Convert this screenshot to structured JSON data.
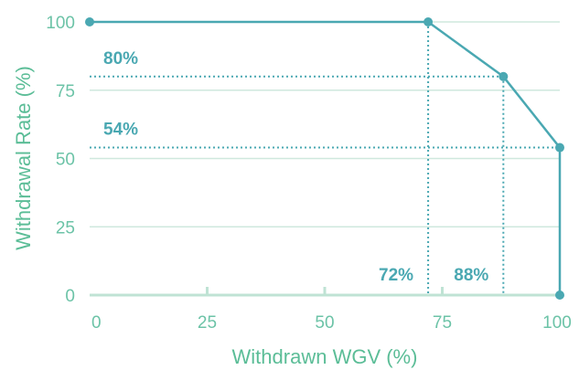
{
  "chart_data": {
    "type": "line",
    "xlabel": "Withdrawn WGV (%)",
    "ylabel": "Withdrawal Rate (%)",
    "xlim": [
      0,
      100
    ],
    "ylim": [
      0,
      100
    ],
    "x_ticks": [
      "0",
      "25",
      "50",
      "75",
      "100"
    ],
    "y_ticks": [
      "0",
      "25",
      "50",
      "75",
      "100"
    ],
    "grid": "horizontal",
    "series": [
      {
        "points": [
          {
            "x": 0,
            "y": 100
          },
          {
            "x": 72,
            "y": 100
          },
          {
            "x": 88,
            "y": 80
          },
          {
            "x": 100,
            "y": 54
          },
          {
            "x": 100,
            "y": 0
          }
        ]
      }
    ],
    "annotations": [
      {
        "text": "80%",
        "axis": "y",
        "value": 80
      },
      {
        "text": "54%",
        "axis": "y",
        "value": 54
      },
      {
        "text": "72%",
        "axis": "x",
        "value": 72
      },
      {
        "text": "88%",
        "axis": "x",
        "value": 88
      }
    ],
    "colors": {
      "line": "#4aa8b2",
      "text": "#6cc3a7",
      "grid": "#cfe8de"
    }
  }
}
